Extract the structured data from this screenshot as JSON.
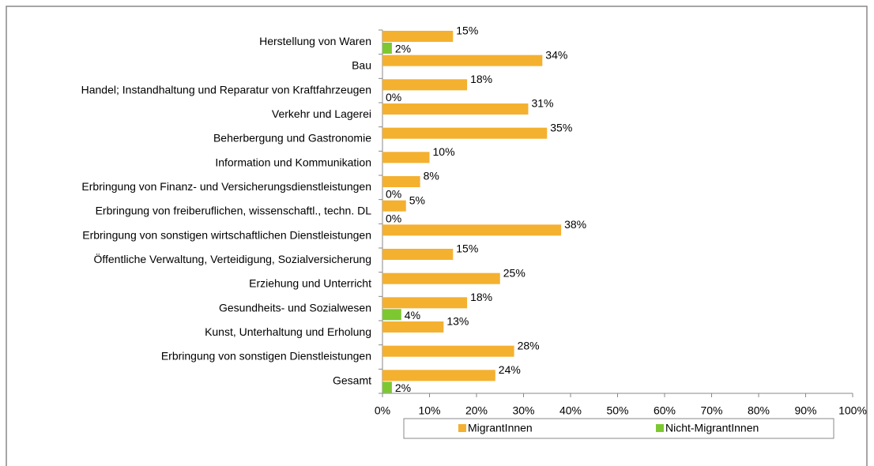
{
  "chart_data": {
    "type": "bar",
    "orientation": "horizontal",
    "categories": [
      "Herstellung von Waren",
      "Bau",
      "Handel; Instandhaltung und Reparatur von Kraftfahrzeugen",
      "Verkehr und Lagerei",
      "Beherbergung und Gastronomie",
      "Information und Kommunikation",
      "Erbringung von Finanz- und Versicherungsdienstleistungen",
      "Erbringung von freiberuflichen, wissenschaftl., techn. DL",
      "Erbringung von sonstigen wirtschaftlichen Dienstleistungen",
      "Öffentliche Verwaltung, Verteidigung, Sozialversicherung",
      "Erziehung und Unterricht",
      "Gesundheits- und Sozialwesen",
      "Kunst, Unterhaltung und Erholung",
      "Erbringung von sonstigen Dienstleistungen",
      "Gesamt"
    ],
    "series": [
      {
        "name": "MigrantInnen",
        "color": "#f4b02f",
        "values": [
          15,
          34,
          18,
          31,
          35,
          10,
          8,
          5,
          38,
          15,
          25,
          18,
          13,
          28,
          24
        ],
        "value_labels": [
          "15%",
          "34%",
          "18%",
          "31%",
          "35%",
          "10%",
          "8%",
          "5%",
          "38%",
          "15%",
          "25%",
          "18%",
          "13%",
          "28%",
          "24%"
        ]
      },
      {
        "name": "Nicht-MigrantInnen",
        "color": "#7dc831",
        "values": [
          2,
          null,
          0,
          null,
          null,
          null,
          0,
          0,
          null,
          null,
          null,
          4,
          null,
          null,
          2
        ],
        "value_labels": [
          "2%",
          null,
          "0%",
          null,
          null,
          null,
          "0%",
          "0%",
          null,
          null,
          null,
          "4%",
          null,
          null,
          "2%"
        ]
      }
    ],
    "xlim": [
      0,
      100
    ],
    "xticks": [
      {
        "value": 0,
        "label": "0%"
      },
      {
        "value": 10,
        "label": "10%"
      },
      {
        "value": 20,
        "label": "20%"
      },
      {
        "value": 30,
        "label": "30%"
      },
      {
        "value": 40,
        "label": "40%"
      },
      {
        "value": 50,
        "label": "50%"
      },
      {
        "value": 60,
        "label": "60%"
      },
      {
        "value": 70,
        "label": "70%"
      },
      {
        "value": 80,
        "label": "80%"
      },
      {
        "value": 90,
        "label": "90%"
      },
      {
        "value": 100,
        "label": "100%"
      }
    ],
    "legend": "bottom"
  }
}
